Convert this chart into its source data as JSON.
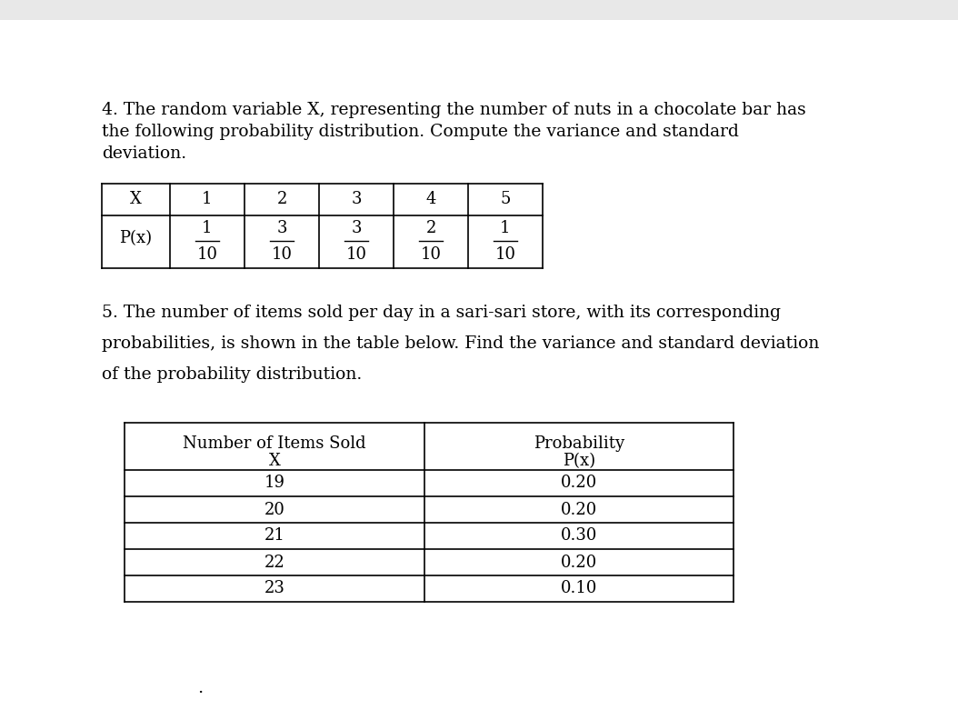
{
  "page_bg": "#ffffff",
  "text_color": "#000000",
  "gray_bar_color": "#e8e8e8",
  "problem4_lines": [
    "4. The random variable X, representing the number of nuts in a chocolate bar has",
    "the following probability distribution. Compute the variance and standard",
    "deviation."
  ],
  "table1_headers": [
    "X",
    "1",
    "2",
    "3",
    "4",
    "5"
  ],
  "table1_row_label": "P(x)",
  "table1_numerators": [
    "1",
    "3",
    "3",
    "2",
    "1"
  ],
  "table1_denominator": "10",
  "problem5_lines": [
    "5. The number of items sold per day in a sari-sari store, with its corresponding",
    "probabilities, is shown in the table below. Find the variance and standard deviation",
    "of the probability distribution."
  ],
  "table2_col1_header1": "Number of Items Sold",
  "table2_col1_header2": "X",
  "table2_col2_header1": "Probability",
  "table2_col2_header2": "P(x)",
  "table2_col1_data": [
    "19",
    "20",
    "21",
    "22",
    "23"
  ],
  "table2_col2_data": [
    "0.20",
    "0.20",
    "0.30",
    "0.20",
    "0.10"
  ],
  "font_size_body": 13.5,
  "font_size_table": 13.0,
  "font_family": "DejaVu Serif"
}
